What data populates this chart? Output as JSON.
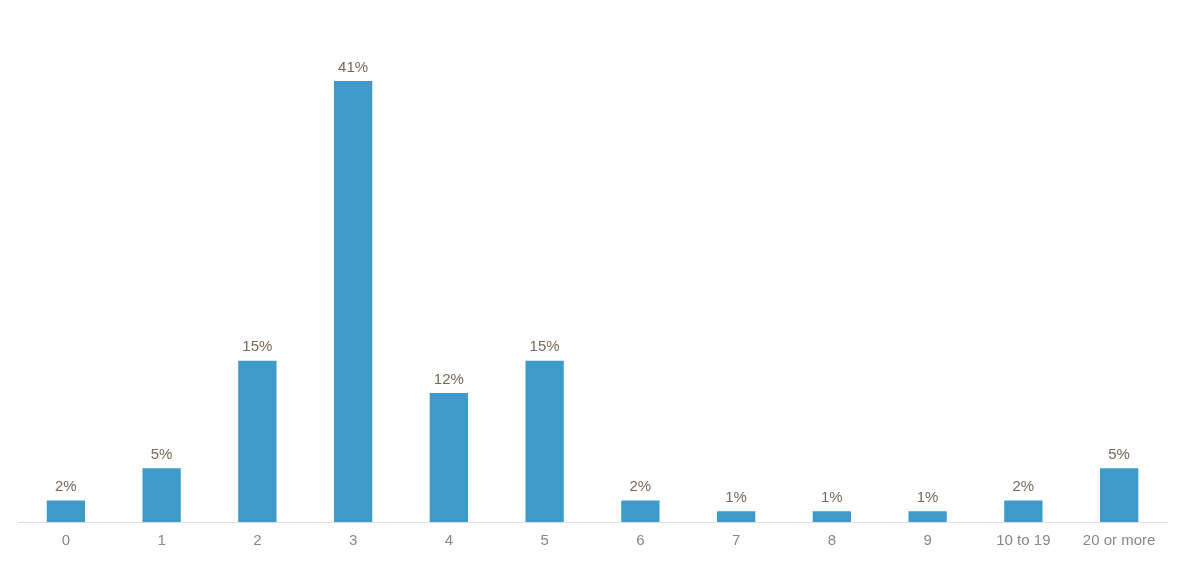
{
  "chart_data": {
    "type": "bar",
    "categories": [
      "0",
      "1",
      "2",
      "3",
      "4",
      "5",
      "6",
      "7",
      "8",
      "9",
      "10 to 19",
      "20 or more"
    ],
    "values": [
      2,
      5,
      15,
      41,
      12,
      15,
      2,
      1,
      1,
      1,
      2,
      5
    ],
    "value_labels": [
      "2%",
      "5%",
      "15%",
      "41%",
      "12%",
      "15%",
      "2%",
      "1%",
      "1%",
      "1%",
      "2%",
      "5%"
    ],
    "color": "#3d9ac9",
    "grid": false,
    "legend": false,
    "tick_labels": "x"
  }
}
